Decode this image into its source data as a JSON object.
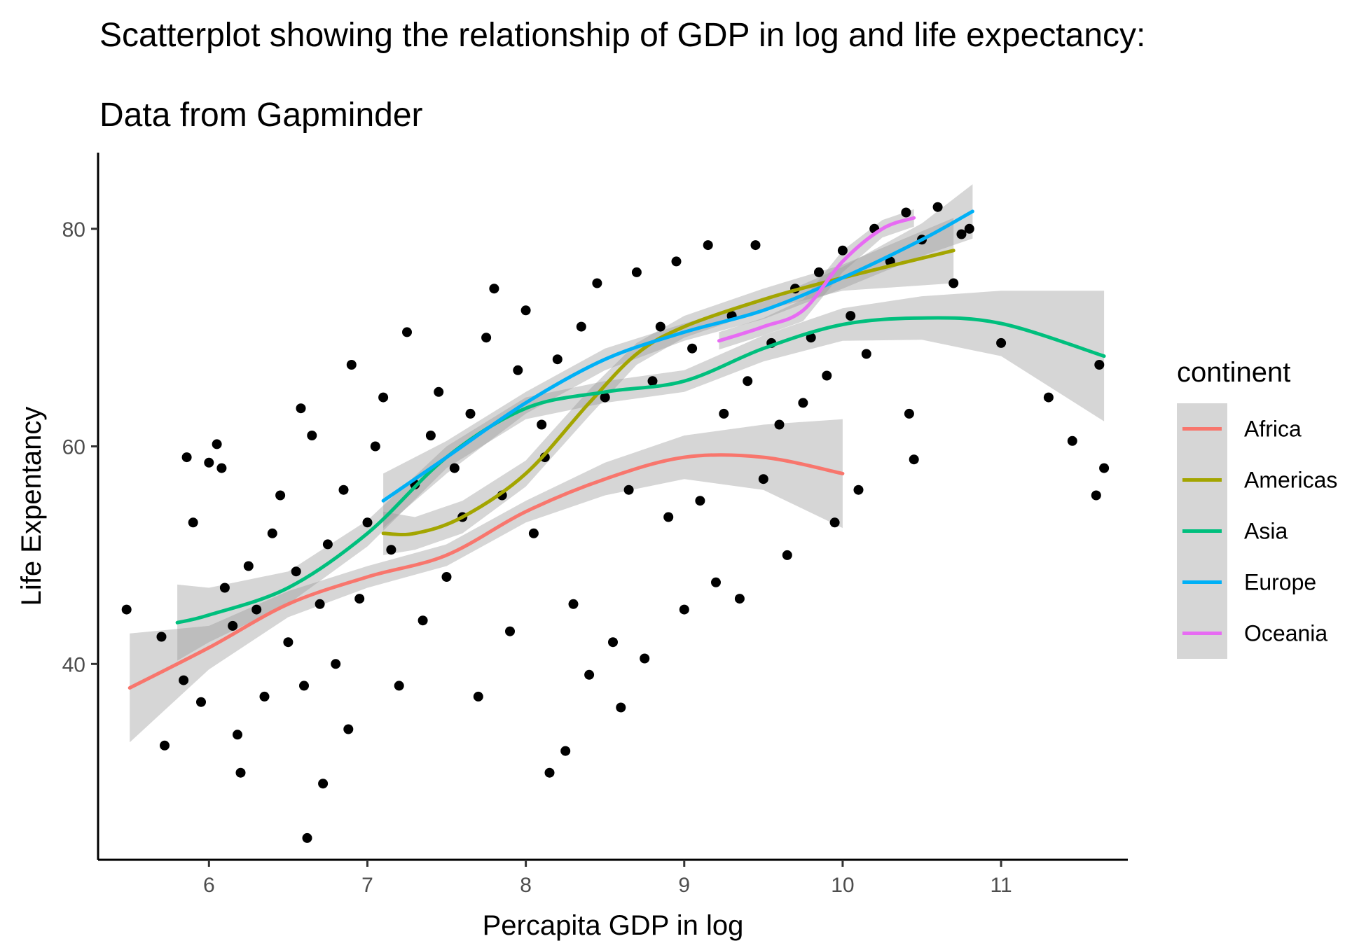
{
  "chart_data": {
    "type": "scatter",
    "title": "Scatterplot showing the relationship of GDP in log and life expectancy:",
    "subtitle": "Data from Gapminder",
    "xlabel": "Percapita GDP in log",
    "ylabel": "Life Expentancy",
    "xlim": [
      5.3,
      11.8
    ],
    "ylim": [
      22,
      87
    ],
    "x_ticks": [
      6,
      7,
      8,
      9,
      10,
      11
    ],
    "y_ticks": [
      40,
      60,
      80
    ],
    "x_tick_labels": [
      "6",
      "7",
      "8",
      "9",
      "10",
      "11"
    ],
    "y_tick_labels": [
      "40",
      "60",
      "80"
    ],
    "grid": false,
    "points_color": "#000000",
    "band_color": "#999999",
    "legend": {
      "title": "continent",
      "position": "right",
      "entries": [
        "Africa",
        "Americas",
        "Asia",
        "Europe",
        "Oceania"
      ]
    },
    "series": [
      {
        "name": "Africa",
        "color": "#F8766D",
        "x": [
          5.5,
          6.0,
          6.5,
          7.0,
          7.5,
          8.0,
          8.5,
          9.0,
          9.5,
          10.0
        ],
        "y": [
          37.8,
          41.5,
          45.5,
          48.0,
          50.0,
          54.0,
          57.0,
          59.0,
          59.0,
          57.5
        ],
        "se": [
          5.0,
          2.0,
          1.2,
          1.0,
          1.0,
          1.0,
          1.5,
          2.0,
          3.0,
          5.0
        ]
      },
      {
        "name": "Americas",
        "color": "#A3A500",
        "x": [
          7.1,
          7.3,
          7.6,
          8.0,
          8.4,
          8.7,
          9.0,
          9.5,
          10.0,
          10.7
        ],
        "y": [
          52.0,
          52.0,
          53.5,
          57.5,
          64.0,
          68.5,
          71.0,
          73.5,
          75.5,
          78.0
        ],
        "se": [
          2.0,
          1.5,
          1.5,
          1.2,
          1.2,
          1.0,
          1.0,
          1.0,
          1.2,
          3.0
        ]
      },
      {
        "name": "Asia",
        "color": "#00BF7D",
        "x": [
          5.8,
          6.0,
          6.5,
          7.0,
          7.5,
          8.0,
          8.5,
          9.0,
          9.5,
          10.0,
          10.5,
          11.0,
          11.65
        ],
        "y": [
          43.8,
          44.5,
          47.0,
          52.0,
          59.0,
          63.5,
          65.0,
          66.0,
          69.0,
          71.2,
          71.8,
          71.3,
          68.3
        ],
        "se": [
          3.5,
          2.5,
          1.5,
          1.2,
          1.0,
          1.0,
          1.0,
          1.0,
          1.2,
          1.5,
          2.0,
          3.0,
          6.0
        ]
      },
      {
        "name": "Europe",
        "color": "#00B0F6",
        "x": [
          7.1,
          7.5,
          8.0,
          8.5,
          9.0,
          9.5,
          10.0,
          10.5,
          10.82
        ],
        "y": [
          55.0,
          59.0,
          64.0,
          68.0,
          70.5,
          72.5,
          75.5,
          79.0,
          81.6
        ],
        "se": [
          2.5,
          1.5,
          1.0,
          1.0,
          0.8,
          0.8,
          1.0,
          1.5,
          2.5
        ]
      },
      {
        "name": "Oceania",
        "color": "#E76BF3",
        "x": [
          9.22,
          9.5,
          9.75,
          10.0,
          10.25,
          10.45
        ],
        "y": [
          69.7,
          71.0,
          72.5,
          77.0,
          80.0,
          81.0
        ],
        "se": [
          0.8,
          0.8,
          1.0,
          1.0,
          0.8,
          0.8
        ]
      }
    ],
    "points": [
      [
        5.48,
        45.0
      ],
      [
        5.7,
        42.5
      ],
      [
        5.72,
        32.5
      ],
      [
        5.84,
        38.5
      ],
      [
        5.86,
        59.0
      ],
      [
        5.9,
        53.0
      ],
      [
        5.95,
        36.5
      ],
      [
        6.0,
        58.5
      ],
      [
        6.05,
        60.2
      ],
      [
        6.08,
        58.0
      ],
      [
        6.1,
        47.0
      ],
      [
        6.15,
        43.5
      ],
      [
        6.18,
        33.5
      ],
      [
        6.2,
        30.0
      ],
      [
        6.25,
        49.0
      ],
      [
        6.3,
        45.0
      ],
      [
        6.35,
        37.0
      ],
      [
        6.4,
        52.0
      ],
      [
        6.45,
        55.5
      ],
      [
        6.5,
        42.0
      ],
      [
        6.55,
        48.5
      ],
      [
        6.58,
        63.5
      ],
      [
        6.6,
        38.0
      ],
      [
        6.62,
        24.0
      ],
      [
        6.65,
        61.0
      ],
      [
        6.7,
        45.5
      ],
      [
        6.72,
        29.0
      ],
      [
        6.75,
        51.0
      ],
      [
        6.8,
        40.0
      ],
      [
        6.85,
        56.0
      ],
      [
        6.88,
        34.0
      ],
      [
        6.9,
        67.5
      ],
      [
        6.95,
        46.0
      ],
      [
        7.0,
        53.0
      ],
      [
        7.05,
        60.0
      ],
      [
        7.1,
        64.5
      ],
      [
        7.15,
        50.5
      ],
      [
        7.2,
        38.0
      ],
      [
        7.25,
        70.5
      ],
      [
        7.3,
        56.5
      ],
      [
        7.35,
        44.0
      ],
      [
        7.4,
        61.0
      ],
      [
        7.45,
        65.0
      ],
      [
        7.5,
        48.0
      ],
      [
        7.55,
        58.0
      ],
      [
        7.6,
        53.5
      ],
      [
        7.65,
        63.0
      ],
      [
        7.7,
        37.0
      ],
      [
        7.75,
        70.0
      ],
      [
        7.8,
        74.5
      ],
      [
        7.85,
        55.5
      ],
      [
        7.9,
        43.0
      ],
      [
        7.95,
        67.0
      ],
      [
        8.0,
        72.5
      ],
      [
        8.05,
        52.0
      ],
      [
        8.1,
        62.0
      ],
      [
        8.12,
        59.0
      ],
      [
        8.15,
        30.0
      ],
      [
        8.2,
        68.0
      ],
      [
        8.25,
        32.0
      ],
      [
        8.3,
        45.5
      ],
      [
        8.35,
        71.0
      ],
      [
        8.4,
        39.0
      ],
      [
        8.45,
        75.0
      ],
      [
        8.5,
        64.5
      ],
      [
        8.55,
        42.0
      ],
      [
        8.6,
        36.0
      ],
      [
        8.65,
        56.0
      ],
      [
        8.7,
        76.0
      ],
      [
        8.75,
        40.5
      ],
      [
        8.8,
        66.0
      ],
      [
        8.85,
        71.0
      ],
      [
        8.9,
        53.5
      ],
      [
        8.95,
        77.0
      ],
      [
        9.0,
        45.0
      ],
      [
        9.05,
        69.0
      ],
      [
        9.1,
        55.0
      ],
      [
        9.15,
        78.5
      ],
      [
        9.2,
        47.5
      ],
      [
        9.25,
        63.0
      ],
      [
        9.3,
        72.0
      ],
      [
        9.35,
        46.0
      ],
      [
        9.4,
        66.0
      ],
      [
        9.45,
        78.5
      ],
      [
        9.5,
        57.0
      ],
      [
        9.55,
        69.5
      ],
      [
        9.6,
        62.0
      ],
      [
        9.65,
        50.0
      ],
      [
        9.7,
        74.5
      ],
      [
        9.75,
        64.0
      ],
      [
        9.8,
        70.0
      ],
      [
        9.85,
        76.0
      ],
      [
        9.9,
        66.5
      ],
      [
        9.95,
        53.0
      ],
      [
        10.0,
        78.0
      ],
      [
        10.05,
        72.0
      ],
      [
        10.1,
        56.0
      ],
      [
        10.15,
        68.5
      ],
      [
        10.2,
        80.0
      ],
      [
        10.3,
        77.0
      ],
      [
        10.4,
        81.5
      ],
      [
        10.42,
        63.0
      ],
      [
        10.45,
        58.8
      ],
      [
        10.5,
        79.0
      ],
      [
        10.6,
        82.0
      ],
      [
        10.7,
        75.0
      ],
      [
        10.75,
        79.5
      ],
      [
        10.8,
        80.0
      ],
      [
        11.0,
        69.5
      ],
      [
        11.3,
        64.5
      ],
      [
        11.45,
        60.5
      ],
      [
        11.6,
        55.5
      ],
      [
        11.65,
        58.0
      ],
      [
        11.62,
        67.5
      ]
    ]
  }
}
